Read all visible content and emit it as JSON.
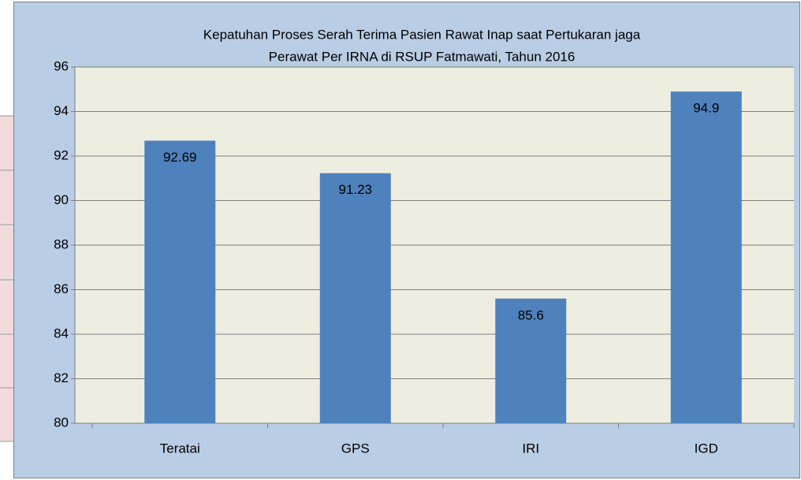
{
  "chart_data": {
    "type": "bar",
    "title": [
      "Kepatuhan  Proses Serah Terima Pasien Rawat Inap saat Pertukaran jaga",
      "Perawat Per IRNA di RSUP Fatmawati, Tahun 2016"
    ],
    "categories": [
      "Teratai",
      "GPS",
      "IRI",
      "IGD"
    ],
    "values": [
      92.69,
      91.23,
      85.6,
      94.9
    ],
    "color": "#4f81bd",
    "ylim": [
      80,
      96
    ],
    "yticks": [
      80,
      82,
      84,
      86,
      88,
      90,
      92,
      94,
      96
    ],
    "grid": true
  }
}
